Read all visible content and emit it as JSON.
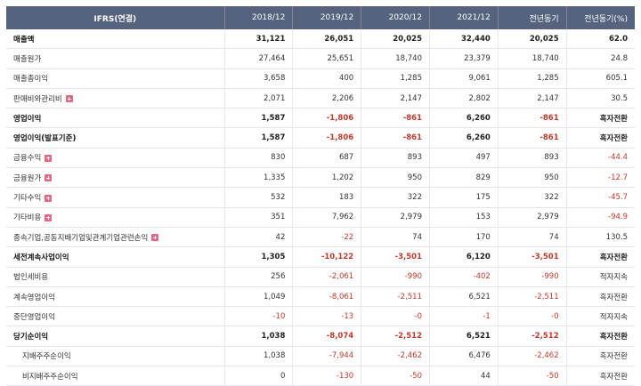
{
  "table": {
    "header": [
      "IFRS(연결)",
      "2018/12",
      "2019/12",
      "2020/12",
      "2021/12",
      "전년동기",
      "전년동기(%)"
    ],
    "rows": [
      {
        "label": "매출액",
        "bold": true,
        "plus": false,
        "sub": false,
        "values": [
          "31,121",
          "26,051",
          "20,025",
          "32,440",
          "20,025",
          "62.0"
        ]
      },
      {
        "label": "매출원가",
        "bold": false,
        "plus": false,
        "sub": false,
        "values": [
          "27,464",
          "25,651",
          "18,740",
          "23,379",
          "18,740",
          "24.8"
        ]
      },
      {
        "label": "매출총이익",
        "bold": false,
        "plus": false,
        "sub": false,
        "values": [
          "3,658",
          "400",
          "1,285",
          "9,061",
          "1,285",
          "605.1"
        ]
      },
      {
        "label": "판매비와관리비",
        "bold": false,
        "plus": true,
        "sub": false,
        "values": [
          "2,071",
          "2,206",
          "2,147",
          "2,802",
          "2,147",
          "30.5"
        ]
      },
      {
        "label": "영업이익",
        "bold": true,
        "plus": false,
        "sub": false,
        "values": [
          "1,587",
          "-1,806",
          "-861",
          "6,260",
          "-861",
          "흑자전환"
        ]
      },
      {
        "label": "영업이익(발표기준)",
        "bold": true,
        "plus": false,
        "sub": false,
        "values": [
          "1,587",
          "-1,806",
          "-861",
          "6,260",
          "-861",
          "흑자전환"
        ]
      },
      {
        "label": "금융수익",
        "bold": false,
        "plus": true,
        "sub": false,
        "values": [
          "830",
          "687",
          "893",
          "497",
          "893",
          "-44.4"
        ]
      },
      {
        "label": "금융원가",
        "bold": false,
        "plus": true,
        "sub": false,
        "values": [
          "1,335",
          "1,202",
          "950",
          "829",
          "950",
          "-12.7"
        ]
      },
      {
        "label": "기타수익",
        "bold": false,
        "plus": true,
        "sub": false,
        "values": [
          "532",
          "183",
          "322",
          "175",
          "322",
          "-45.7"
        ]
      },
      {
        "label": "기타비용",
        "bold": false,
        "plus": true,
        "sub": false,
        "values": [
          "351",
          "7,962",
          "2,979",
          "153",
          "2,979",
          "-94.9"
        ]
      },
      {
        "label": "종속기업,공동지배기업및관계기업관련손익",
        "bold": false,
        "plus": true,
        "sub": false,
        "values": [
          "42",
          "-22",
          "74",
          "170",
          "74",
          "130.5"
        ]
      },
      {
        "label": "세전계속사업이익",
        "bold": true,
        "plus": false,
        "sub": false,
        "values": [
          "1,305",
          "-10,122",
          "-3,501",
          "6,120",
          "-3,501",
          "흑자전환"
        ]
      },
      {
        "label": "법인세비용",
        "bold": false,
        "plus": false,
        "sub": false,
        "values": [
          "256",
          "-2,061",
          "-990",
          "-402",
          "-990",
          "적자지속"
        ]
      },
      {
        "label": "계속영업이익",
        "bold": false,
        "plus": false,
        "sub": false,
        "values": [
          "1,049",
          "-8,061",
          "-2,511",
          "6,521",
          "-2,511",
          "흑자전환"
        ]
      },
      {
        "label": "중단영업이익",
        "bold": false,
        "plus": false,
        "sub": false,
        "values": [
          "-10",
          "-13",
          "-0",
          "-1",
          "-0",
          "적자지속"
        ]
      },
      {
        "label": "당기순이익",
        "bold": true,
        "plus": false,
        "sub": false,
        "values": [
          "1,038",
          "-8,074",
          "-2,512",
          "6,521",
          "-2,512",
          "흑자전환"
        ]
      },
      {
        "label": "지배주주순이익",
        "bold": false,
        "plus": false,
        "sub": true,
        "values": [
          "1,038",
          "-7,944",
          "-2,462",
          "6,476",
          "-2,462",
          "흑자전환"
        ]
      },
      {
        "label": "비지배주주순이익",
        "bold": false,
        "plus": false,
        "sub": true,
        "values": [
          "0",
          "-130",
          "-50",
          "44",
          "-50",
          "흑자전환"
        ]
      }
    ]
  }
}
